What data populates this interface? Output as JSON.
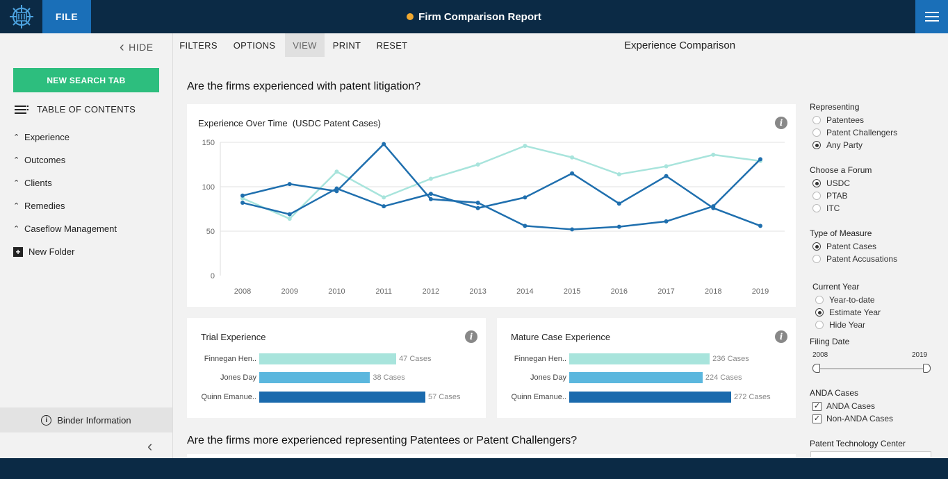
{
  "header": {
    "file_label": "FILE",
    "title": "Firm Comparison Report",
    "status_color": "#f0a830"
  },
  "sidebar": {
    "hide_label": "HIDE",
    "new_tab_label": "NEW SEARCH TAB",
    "toc_label": "TABLE OF CONTENTS",
    "items": [
      {
        "label": "Experience"
      },
      {
        "label": "Outcomes"
      },
      {
        "label": "Clients"
      },
      {
        "label": "Remedies"
      },
      {
        "label": "Caseflow Management"
      }
    ],
    "new_folder_label": "New Folder",
    "binder_label": "Binder Information"
  },
  "toolbar": {
    "items": [
      "FILTERS",
      "OPTIONS",
      "VIEW",
      "PRINT",
      "RESET"
    ],
    "active": "VIEW",
    "view_title": "Experience Comparison"
  },
  "main": {
    "question1": "Are the firms experienced with patent litigation?",
    "question2": "Are the firms more experienced representing Patentees or Patent Challengers?",
    "line_card_title": "Experience Over Time  (USDC Patent Cases)",
    "trial_title": "Trial Experience",
    "mature_title": "Mature Case Experience"
  },
  "chart_data": [
    {
      "type": "line",
      "title": "Experience Over Time  (USDC Patent Cases)",
      "x": [
        "2008",
        "2009",
        "2010",
        "2011",
        "2012",
        "2013",
        "2014",
        "2015",
        "2016",
        "2017",
        "2018",
        "2019"
      ],
      "ylim": [
        0,
        150
      ],
      "yticks": [
        0,
        50,
        100,
        150
      ],
      "grid": true,
      "series": [
        {
          "color": "#a8e4dc",
          "values": [
            87,
            64,
            117,
            88,
            109,
            125,
            146,
            133,
            114,
            123,
            136,
            129
          ]
        },
        {
          "color": "#1f6fae",
          "values": [
            90,
            103,
            95,
            148,
            86,
            82,
            56,
            52,
            55,
            61,
            78,
            131
          ]
        },
        {
          "color": "#1f6fae",
          "values": [
            82,
            69,
            98,
            78,
            92,
            76,
            88,
            115,
            81,
            112,
            76,
            56
          ]
        }
      ]
    },
    {
      "type": "bar",
      "title": "Trial Experience",
      "orientation": "horizontal",
      "categories": [
        "Finnegan Hen..",
        "Jones Day",
        "Quinn Emanue.."
      ],
      "values": [
        47,
        38,
        57
      ],
      "value_labels": [
        "47 Cases",
        "38 Cases",
        "57 Cases"
      ],
      "colors": [
        "#a8e4dc",
        "#5bb7de",
        "#1a6aad"
      ]
    },
    {
      "type": "bar",
      "title": "Mature Case Experience",
      "orientation": "horizontal",
      "categories": [
        "Finnegan Hen..",
        "Jones Day",
        "Quinn Emanue.."
      ],
      "values": [
        236,
        224,
        272
      ],
      "value_labels": [
        "236 Cases",
        "224 Cases",
        "272 Cases"
      ],
      "colors": [
        "#a8e4dc",
        "#5bb7de",
        "#1a6aad"
      ]
    }
  ],
  "filters": {
    "representing": {
      "title": "Representing",
      "options": [
        {
          "label": "Patentees",
          "selected": false
        },
        {
          "label": "Patent Challengers",
          "selected": false
        },
        {
          "label": "Any Party",
          "selected": true
        }
      ]
    },
    "forum": {
      "title": "Choose a Forum",
      "options": [
        {
          "label": "USDC",
          "selected": true
        },
        {
          "label": "PTAB",
          "selected": false
        },
        {
          "label": "ITC",
          "selected": false
        }
      ]
    },
    "measure": {
      "title": "Type of Measure",
      "options": [
        {
          "label": "Patent Cases",
          "selected": true
        },
        {
          "label": "Patent Accusations",
          "selected": false
        }
      ]
    },
    "current_year": {
      "title": "Current Year",
      "options": [
        {
          "label": "Year-to-date",
          "selected": false
        },
        {
          "label": "Estimate Year",
          "selected": true
        },
        {
          "label": "Hide Year",
          "selected": false
        }
      ]
    },
    "filing_date": {
      "title": "Filing Date",
      "min_label": "2008",
      "max_label": "2019"
    },
    "anda": {
      "title": "ANDA Cases",
      "options": [
        {
          "label": "ANDA Cases",
          "checked": true
        },
        {
          "label": "Non-ANDA Cases",
          "checked": true
        }
      ]
    },
    "tech_center_title": "Patent Technology Center"
  }
}
